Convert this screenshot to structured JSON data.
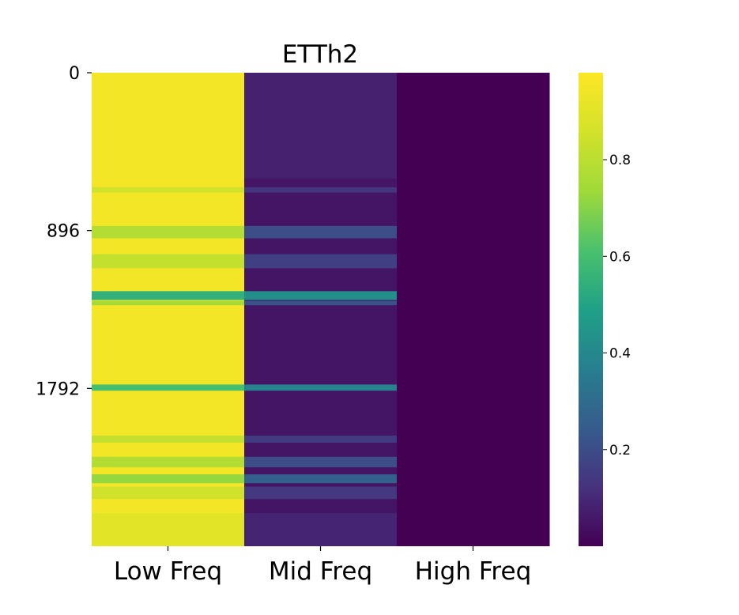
{
  "chart_data": {
    "type": "heatmap",
    "title": "ETTh2",
    "xlabel": "",
    "ylabel": "",
    "colormap": "viridis",
    "x_categories": [
      "Low Freq",
      "Mid Freq",
      "High Freq"
    ],
    "y_ticks": [
      "0",
      "896",
      "1792"
    ],
    "y_tick_values": [
      0,
      896,
      1792
    ],
    "y_range": [
      0,
      2688
    ],
    "colorbar": {
      "range": [
        0.0,
        0.98
      ],
      "ticks": [
        "0.2",
        "0.4",
        "0.6",
        "0.8"
      ],
      "tick_values": [
        0.2,
        0.4,
        0.6,
        0.8
      ]
    },
    "columns": [
      {
        "name": "Low Freq",
        "base_value": 0.95,
        "bands": [
          {
            "row_start": 650,
            "row_end": 680,
            "value": 0.85
          },
          {
            "row_start": 870,
            "row_end": 940,
            "value": 0.78
          },
          {
            "row_start": 1030,
            "row_end": 1110,
            "value": 0.82
          },
          {
            "row_start": 1240,
            "row_end": 1290,
            "value": 0.55
          },
          {
            "row_start": 1295,
            "row_end": 1320,
            "value": 0.75
          },
          {
            "row_start": 1770,
            "row_end": 1805,
            "value": 0.6
          },
          {
            "row_start": 2060,
            "row_end": 2100,
            "value": 0.82
          },
          {
            "row_start": 2180,
            "row_end": 2240,
            "value": 0.78
          },
          {
            "row_start": 2280,
            "row_end": 2330,
            "value": 0.72
          },
          {
            "row_start": 2350,
            "row_end": 2420,
            "value": 0.85
          },
          {
            "row_start": 2500,
            "row_end": 2688,
            "value": 0.9
          }
        ]
      },
      {
        "name": "Mid Freq",
        "base_value": 0.05,
        "bands": [
          {
            "row_start": 0,
            "row_end": 600,
            "value": 0.08
          },
          {
            "row_start": 650,
            "row_end": 680,
            "value": 0.13
          },
          {
            "row_start": 870,
            "row_end": 940,
            "value": 0.2
          },
          {
            "row_start": 1030,
            "row_end": 1110,
            "value": 0.16
          },
          {
            "row_start": 1240,
            "row_end": 1290,
            "value": 0.42
          },
          {
            "row_start": 1295,
            "row_end": 1320,
            "value": 0.22
          },
          {
            "row_start": 1770,
            "row_end": 1805,
            "value": 0.38
          },
          {
            "row_start": 2060,
            "row_end": 2100,
            "value": 0.15
          },
          {
            "row_start": 2180,
            "row_end": 2240,
            "value": 0.2
          },
          {
            "row_start": 2280,
            "row_end": 2330,
            "value": 0.26
          },
          {
            "row_start": 2350,
            "row_end": 2420,
            "value": 0.14
          },
          {
            "row_start": 2500,
            "row_end": 2688,
            "value": 0.09
          }
        ]
      },
      {
        "name": "High Freq",
        "base_value": 0.0,
        "bands": []
      }
    ]
  }
}
